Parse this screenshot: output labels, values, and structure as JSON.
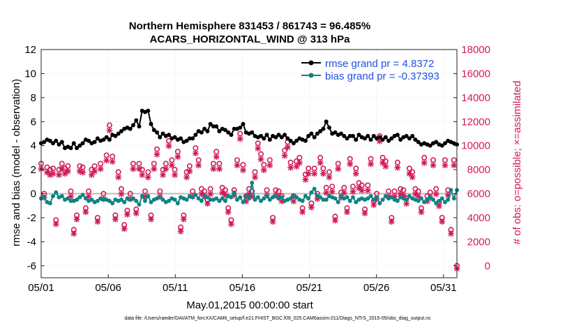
{
  "chart_data": {
    "type": "line",
    "title": "Northern Hemisphere 831453 / 861743 = 96.485%",
    "subtitle": "ACARS_HORIZONTAL_WIND @ 313 hPa",
    "xlabel": "May.01,2015 00:00:00 start",
    "ylabel_left": "rmse and bias (model - observation)",
    "ylabel_right": "# of obs: o=possible; ×=assimilated",
    "footnote": "data file: /Users/raeder/DAI/ATM_forcXX/CAM6_setup/f.e21.FHIST_BGC.f09_025.CAM6assim.011/Diags_NTrS_2015-05/obs_diag_output.nc",
    "x_ticks": [
      "05/01",
      "05/06",
      "05/11",
      "05/16",
      "05/21",
      "05/26",
      "05/31"
    ],
    "x_tick_days": [
      1,
      6,
      11,
      16,
      21,
      26,
      31
    ],
    "xlim_days": [
      1,
      32
    ],
    "ylim_left": [
      -7,
      12
    ],
    "yticks_left": [
      -6,
      -4,
      -2,
      0,
      2,
      4,
      6,
      8,
      10,
      12
    ],
    "ylim_right": [
      -1000,
      18000
    ],
    "yticks_right": [
      0,
      2000,
      4000,
      6000,
      8000,
      10000,
      12000,
      14000,
      16000,
      18000
    ],
    "colors": {
      "rmse": "#000000",
      "bias": "#0f8383",
      "obs": "#d11a55",
      "legend_text": "#1f4fe0",
      "zero_line": "#bbbbbb",
      "grid": "#d9d9d9"
    },
    "series": [
      {
        "name": "rmse",
        "legend": "rmse grand pr = 4.8372",
        "axis": "left",
        "values": [
          4.2,
          4.3,
          4.5,
          4.4,
          4.2,
          4.4,
          4.1,
          4.3,
          3.8,
          3.9,
          3.8,
          4.2,
          3.8,
          4.0,
          4.2,
          4.5,
          4.4,
          4.2,
          4.3,
          4.6,
          4.4,
          4.5,
          4.7,
          4.5,
          4.9,
          4.8,
          5.0,
          5.2,
          5.4,
          5.5,
          5.4,
          5.7,
          6.1,
          5.6,
          6.9,
          6.8,
          6.9,
          5.8,
          5.3,
          5.1,
          4.7,
          5.0,
          4.8,
          4.9,
          4.6,
          4.7,
          4.5,
          4.6,
          4.3,
          4.4,
          4.6,
          4.6,
          4.9,
          5.2,
          5.1,
          5.4,
          5.2,
          5.8,
          5.6,
          5.6,
          5.2,
          5.4,
          5.3,
          5.1,
          4.9,
          5.4,
          5.4,
          5.5,
          5.8,
          5.1,
          5.0,
          5.1,
          4.8,
          4.7,
          4.8,
          4.6,
          4.9,
          4.5,
          4.8,
          4.7,
          4.9,
          4.7,
          4.9,
          4.6,
          4.4,
          4.2,
          4.4,
          4.6,
          4.5,
          4.4,
          4.8,
          5.0,
          4.7,
          5.0,
          5.2,
          5.4,
          6.0,
          5.5,
          5.0,
          5.1,
          4.9,
          5.0,
          4.8,
          4.6,
          4.8,
          4.8,
          4.5,
          4.9,
          4.7,
          4.6,
          4.8,
          4.5,
          4.8,
          4.6,
          4.7,
          4.5,
          4.7,
          4.4,
          4.6,
          4.8,
          4.9,
          4.5,
          4.7,
          4.8,
          4.6,
          4.8,
          4.5,
          4.3,
          4.1,
          4.2,
          4.1,
          4.0,
          4.2,
          4.3,
          4.1,
          4.0,
          4.2,
          4.4,
          4.3,
          4.2,
          4.1
        ]
      },
      {
        "name": "bias",
        "legend": "bias grand pr = -0.37393",
        "axis": "left",
        "values": [
          -0.4,
          -0.3,
          -0.7,
          -0.8,
          -0.2,
          0.1,
          -0.3,
          -0.2,
          -0.5,
          -0.4,
          -0.6,
          -0.6,
          -0.5,
          -0.3,
          -0.1,
          -0.4,
          -0.6,
          -0.5,
          -0.7,
          -0.6,
          -0.4,
          -0.5,
          -0.5,
          -0.6,
          -0.8,
          -0.5,
          -0.6,
          -0.5,
          -0.7,
          -0.4,
          -0.5,
          -0.4,
          -0.6,
          -0.9,
          -0.2,
          -0.6,
          -0.2,
          -0.7,
          -0.5,
          -0.4,
          -0.3,
          -0.5,
          -0.7,
          -0.6,
          -0.4,
          -0.5,
          -0.8,
          -0.3,
          -0.4,
          -0.5,
          -0.2,
          -0.3,
          -0.1,
          -0.4,
          -0.6,
          -0.2,
          -0.3,
          -0.5,
          -0.5,
          -0.4,
          -0.6,
          -0.4,
          -0.6,
          -0.2,
          -0.3,
          0.1,
          -0.5,
          -0.3,
          -0.7,
          -0.2,
          -0.4,
          0.9,
          -0.5,
          -0.3,
          -0.6,
          -0.4,
          -0.2,
          -0.5,
          -0.3,
          -0.2,
          -0.4,
          -0.3,
          -0.6,
          -0.5,
          -0.4,
          -0.2,
          -0.3,
          -0.5,
          -0.6,
          -0.2,
          -0.4,
          0.1,
          0.4,
          -0.2,
          -0.3,
          -0.5,
          -0.5,
          -0.2,
          -0.3,
          -0.4,
          -0.7,
          -0.2,
          -0.4,
          -0.3,
          -0.6,
          -0.3,
          -0.7,
          -0.5,
          -0.4,
          -0.5,
          -0.4,
          -0.2,
          -0.5,
          -0.3,
          -0.8,
          -0.5,
          -0.2,
          -0.4,
          -0.3,
          -0.5,
          -0.6,
          -0.3,
          -0.4,
          -0.5,
          -0.2,
          -0.4,
          -0.5,
          -0.6,
          -0.4,
          -0.7,
          -0.5,
          -0.3,
          -0.5,
          -0.8,
          -0.6,
          -0.4,
          -0.7,
          -0.5,
          0.3,
          -0.4,
          0.3
        ]
      },
      {
        "name": "obs_possible",
        "axis": "right",
        "marker": "o",
        "values": [
          8500,
          6000,
          8200,
          8000,
          8100,
          3800,
          8000,
          8500,
          8100,
          8300,
          6200,
          3000,
          4200,
          8300,
          8200,
          4800,
          6200,
          8000,
          8300,
          4000,
          8500,
          6000,
          9200,
          11700,
          9100,
          4200,
          7800,
          6400,
          3400,
          4600,
          6000,
          8500,
          4700,
          8500,
          8000,
          6200,
          7800,
          4200,
          8500,
          9700,
          6200,
          8000,
          8500,
          10400,
          8800,
          8000,
          9500,
          3200,
          4200,
          7800,
          8300,
          6200,
          9800,
          8800,
          6400,
          6200,
          5500,
          6400,
          8500,
          9500,
          8500,
          6500,
          6300,
          4800,
          3800,
          6300,
          8800,
          11000,
          8400,
          5800,
          6400,
          6200,
          7800,
          10200,
          9300,
          8400,
          6300,
          8800,
          4000,
          6300,
          6200,
          5800,
          9600,
          10300,
          8600,
          5800,
          8700,
          9000,
          4800,
          7600,
          8100,
          5200,
          8100,
          6000,
          9000,
          8100,
          6500,
          7800,
          6600,
          4100,
          8500,
          6100,
          6500,
          4800,
          8900,
          6600,
          8100,
          6900,
          6700,
          4700,
          6700,
          8900,
          5400,
          6000,
          10800,
          9000,
          8700,
          6200,
          4000,
          6200,
          8600,
          6400,
          6300,
          5600,
          8100,
          7800,
          6400,
          6200,
          4800,
          9000,
          5800,
          6100,
          8800,
          6400,
          5300,
          4000,
          8800,
          6300,
          3000,
          8800,
          0
        ]
      },
      {
        "name": "obs_assimilated",
        "axis": "right",
        "marker": "x",
        "values": [
          8300,
          5900,
          8000,
          7800,
          7900,
          3700,
          7800,
          8300,
          7900,
          8100,
          6000,
          2900,
          4100,
          8100,
          8000,
          4700,
          6000,
          7800,
          8100,
          3900,
          8300,
          5800,
          9000,
          11500,
          8900,
          4100,
          7600,
          6200,
          3300,
          4500,
          5800,
          8300,
          4600,
          8300,
          7800,
          6000,
          7600,
          4100,
          8300,
          9500,
          6000,
          7800,
          8300,
          10200,
          8600,
          7800,
          9300,
          3100,
          4100,
          7600,
          8100,
          6000,
          9600,
          8600,
          6200,
          6000,
          5400,
          6200,
          8300,
          9300,
          8300,
          6300,
          6100,
          4700,
          3700,
          6100,
          8600,
          10800,
          8200,
          5600,
          6200,
          6000,
          7600,
          10000,
          9100,
          8200,
          6100,
          8600,
          3900,
          6100,
          6000,
          5600,
          9400,
          10100,
          8400,
          5600,
          8500,
          8800,
          4700,
          7400,
          7900,
          5100,
          7900,
          5800,
          8800,
          7900,
          6300,
          7600,
          6400,
          4000,
          8300,
          5900,
          6300,
          4700,
          8700,
          6400,
          7900,
          6700,
          6500,
          4600,
          6500,
          8700,
          5300,
          5800,
          10600,
          8800,
          8500,
          6000,
          3900,
          6000,
          8400,
          6200,
          6100,
          5400,
          7900,
          7600,
          6200,
          6000,
          4700,
          8800,
          5600,
          5900,
          8600,
          6200,
          5200,
          3900,
          8600,
          6100,
          2900,
          8600,
          0
        ]
      }
    ]
  }
}
